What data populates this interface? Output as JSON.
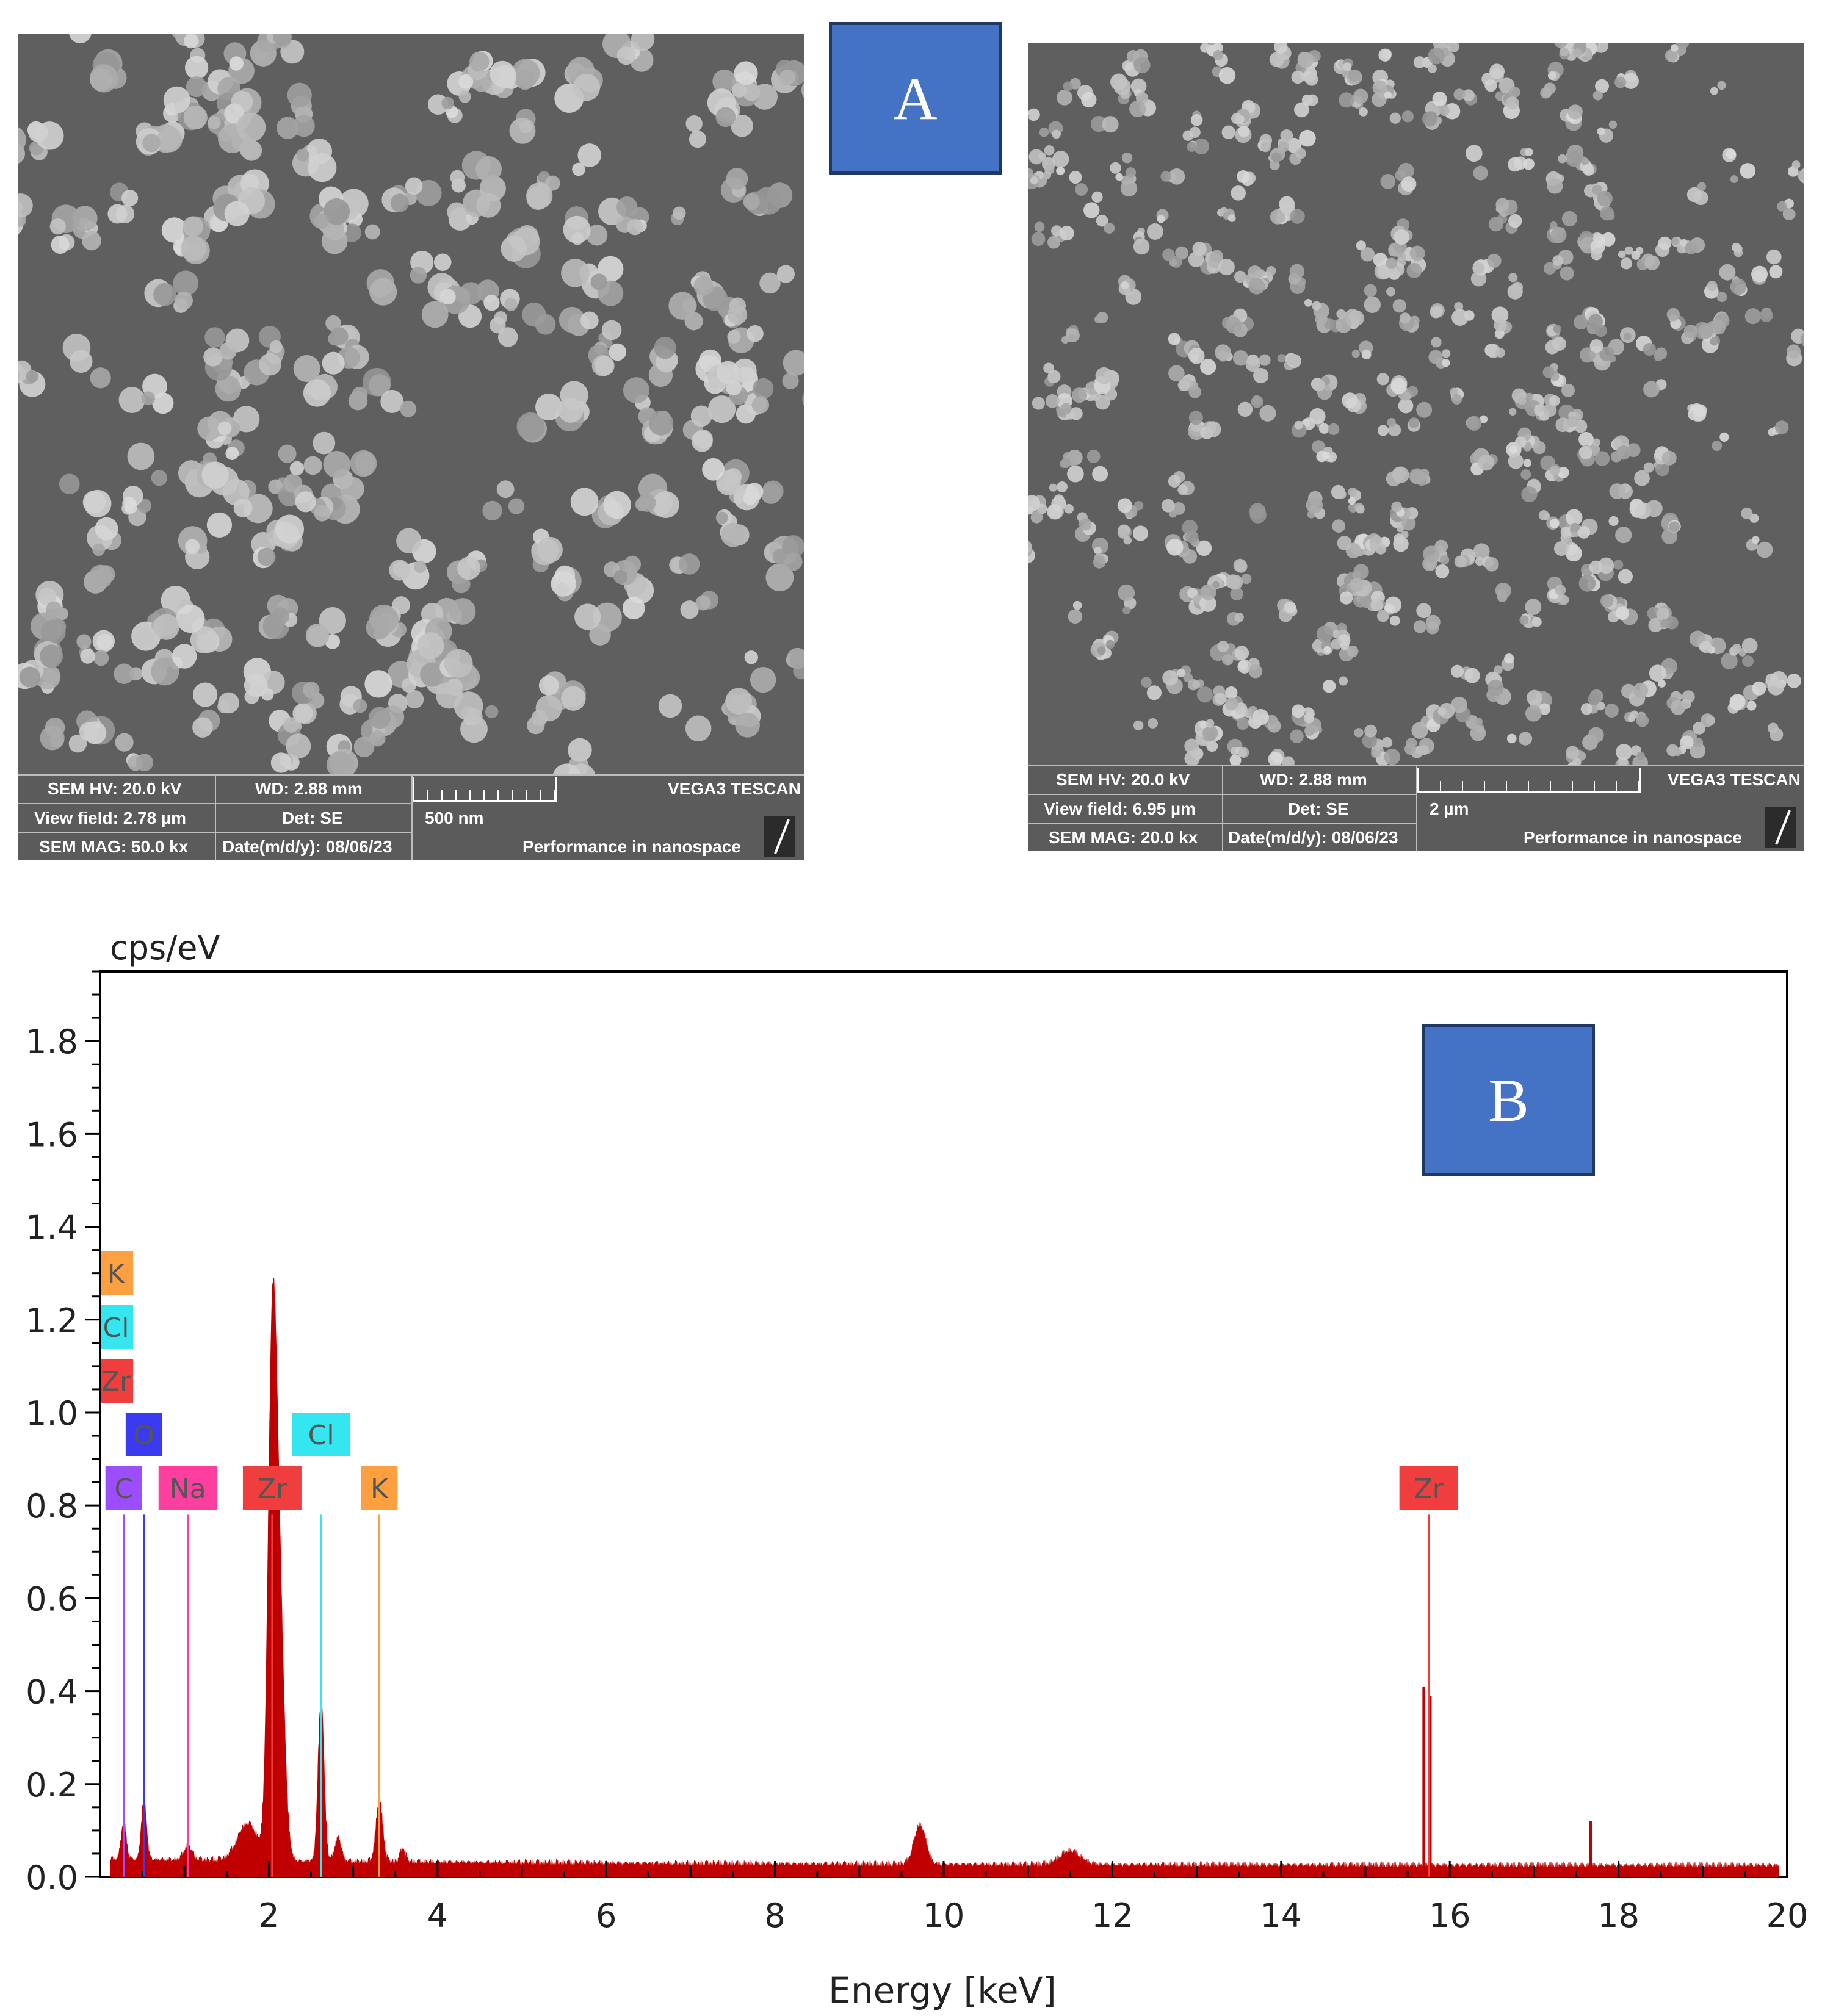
{
  "panels": {
    "label_a": "A",
    "label_b": "B"
  },
  "sem_left": {
    "hv": "SEM HV: 20.0 kV",
    "wd": "WD: 2.88 mm",
    "instrument": "VEGA3 TESCAN",
    "view_field": "View field: 2.78 µm",
    "det": "Det: SE",
    "scale": "500 nm",
    "mag": "SEM MAG: 50.0 kx",
    "date": "Date(m/d/y): 08/06/23",
    "slogan": "Performance in nanospace"
  },
  "sem_right": {
    "hv": "SEM HV: 20.0 kV",
    "wd": "WD: 2.88 mm",
    "instrument": "VEGA3 TESCAN",
    "view_field": "View field: 6.95 µm",
    "det": "Det: SE",
    "scale": "2 µm",
    "mag": "SEM MAG: 20.0 kx",
    "date": "Date(m/d/y): 08/06/23",
    "slogan": "Performance in nanospace"
  },
  "chart_data": {
    "type": "area",
    "ylabel": "cps/eV",
    "xlabel": "Energy [keV]",
    "xlim": [
      0,
      20
    ],
    "ylim": [
      0,
      1.95
    ],
    "xticks": [
      2,
      4,
      6,
      8,
      10,
      12,
      14,
      16,
      18,
      20
    ],
    "yticks": [
      0.0,
      0.2,
      0.4,
      0.6,
      0.8,
      1.0,
      1.2,
      1.4,
      1.6,
      1.8
    ],
    "baseline": 0.03,
    "peaks": [
      {
        "e": 0.28,
        "h": 0.08,
        "w": 0.03
      },
      {
        "e": 0.52,
        "h": 0.13,
        "w": 0.03
      },
      {
        "e": 1.04,
        "h": 0.03,
        "w": 0.05
      },
      {
        "e": 1.75,
        "h": 0.08,
        "w": 0.12
      },
      {
        "e": 2.04,
        "h": 0.99,
        "w": 0.05
      },
      {
        "e": 2.12,
        "h": 0.55,
        "w": 0.06
      },
      {
        "e": 2.62,
        "h": 0.35,
        "w": 0.035
      },
      {
        "e": 2.82,
        "h": 0.05,
        "w": 0.04
      },
      {
        "e": 3.31,
        "h": 0.13,
        "w": 0.04
      },
      {
        "e": 3.59,
        "h": 0.03,
        "w": 0.03
      },
      {
        "e": 9.72,
        "h": 0.085,
        "w": 0.07
      },
      {
        "e": 11.5,
        "h": 0.03,
        "w": 0.12
      }
    ],
    "spikes": [
      {
        "e": 15.69,
        "h": 0.41
      },
      {
        "e": 15.77,
        "h": 0.39
      },
      {
        "e": 17.67,
        "h": 0.12
      },
      {
        "e": 18.0,
        "h": 0.025
      }
    ],
    "element_markers": [
      {
        "label": "C",
        "e": 0.28,
        "color": "#9b4dff",
        "row": 0
      },
      {
        "label": "O",
        "e": 0.52,
        "color": "#3a3af0",
        "row": 1
      },
      {
        "label": "Na",
        "e": 1.04,
        "color": "#ff3fa0",
        "row": 0
      },
      {
        "label": "Zr",
        "e": 2.04,
        "color": "#f03e3e",
        "row": 0
      },
      {
        "label": "Cl",
        "e": 2.62,
        "color": "#33e6f0",
        "row": 1
      },
      {
        "label": "K",
        "e": 3.31,
        "color": "#ffa040",
        "row": 0
      },
      {
        "label": "Zr",
        "e": 15.75,
        "color": "#f03e3e",
        "row": 0
      }
    ],
    "left_markers": [
      {
        "label": "Zr",
        "color": "#f03e3e",
        "row": 2
      },
      {
        "label": "Cl",
        "color": "#33e6f0",
        "row": 3
      },
      {
        "label": "K",
        "color": "#ffa040",
        "row": 4
      }
    ],
    "marker_top": 0.78,
    "series_color": "#c00000"
  }
}
